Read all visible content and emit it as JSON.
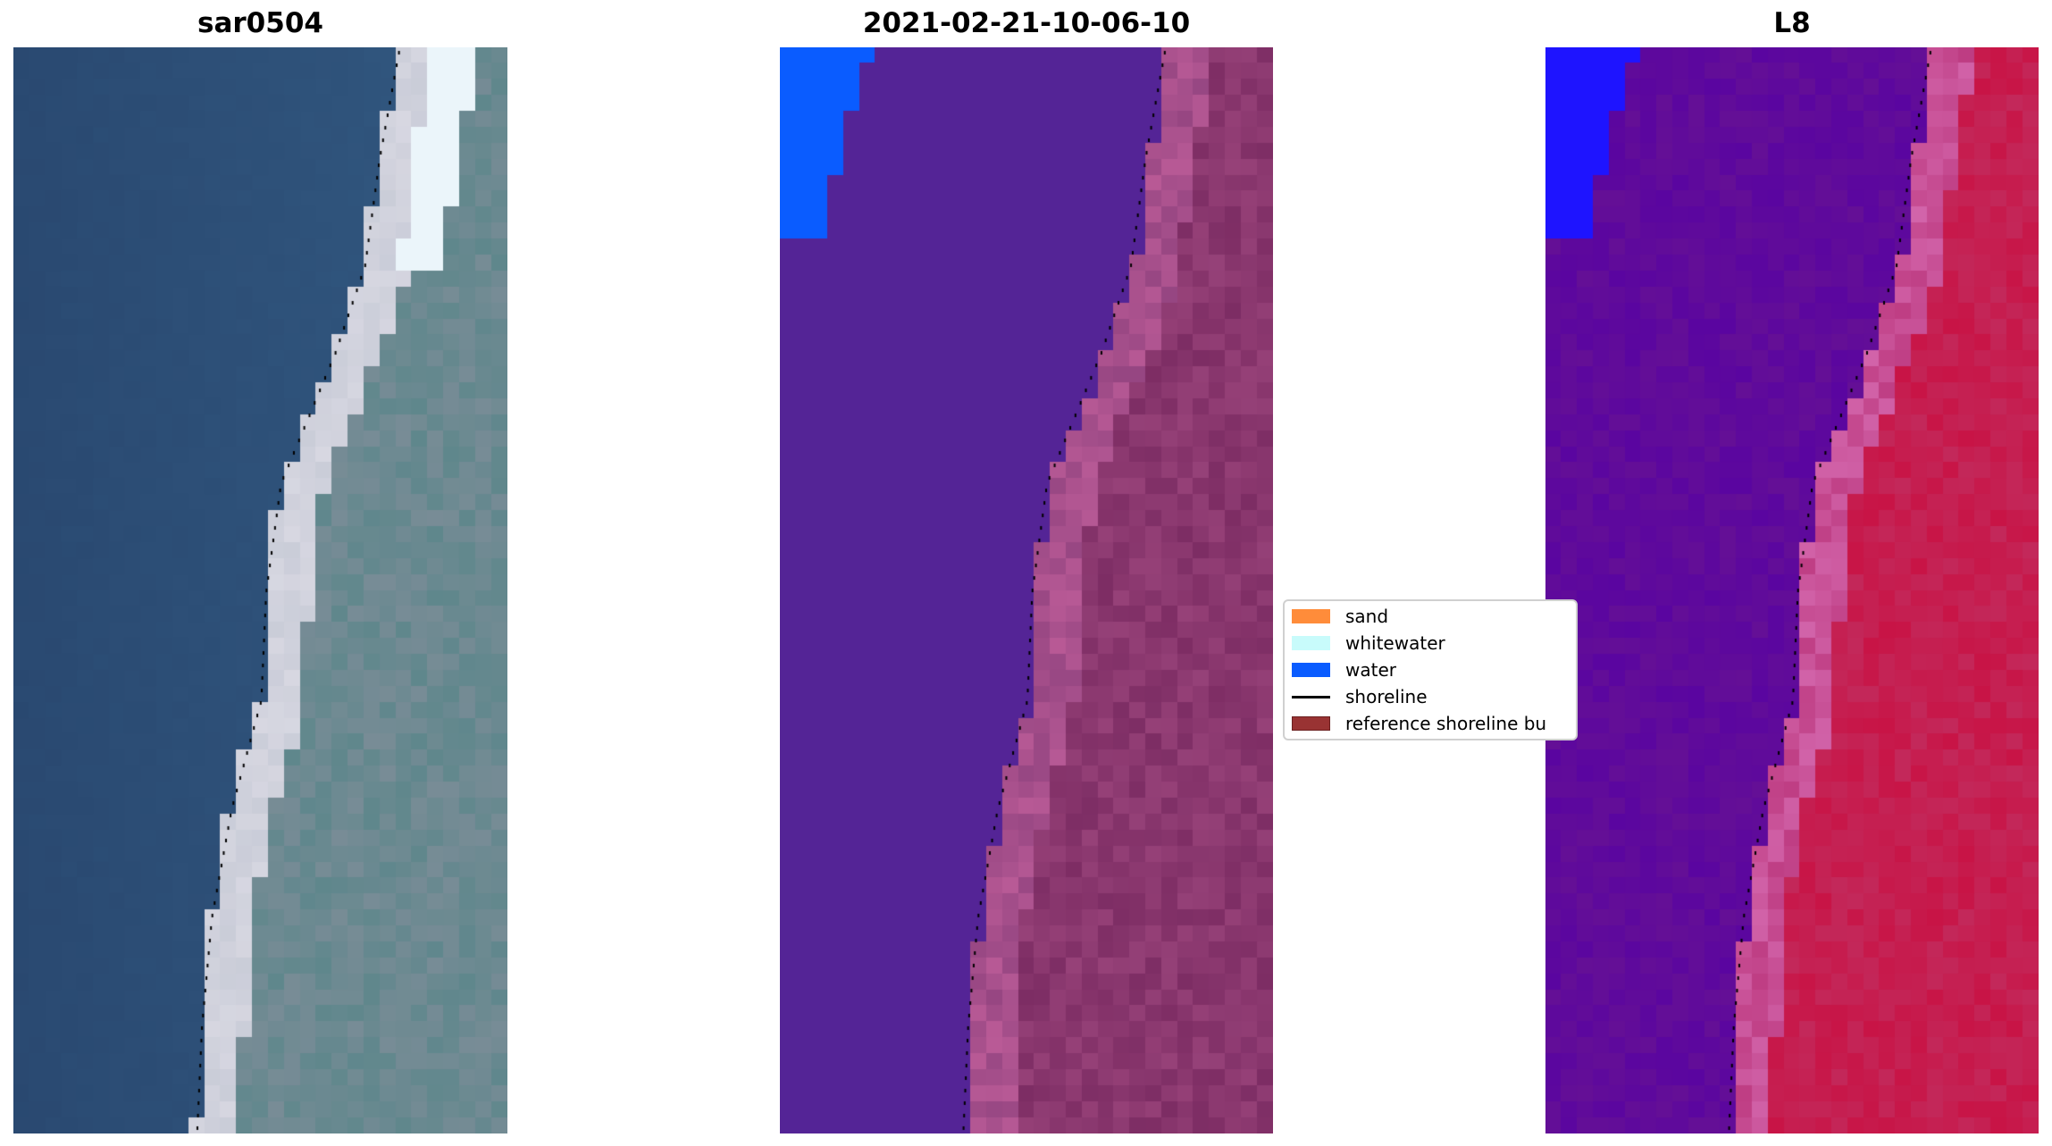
{
  "chart_data": {
    "type": "image-panels",
    "panels": [
      {
        "title": "sar0504",
        "kind": "rgb"
      },
      {
        "title": "2021-02-21-10-06-10",
        "kind": "classified"
      },
      {
        "title": "L8",
        "kind": "classified-l8"
      }
    ],
    "legend": {
      "placement": "center-right of middle panel",
      "entries": [
        {
          "label": "sand",
          "type": "patch",
          "color": "#ff8c3a"
        },
        {
          "label": "whitewater",
          "type": "patch",
          "color": "#c8fbfb"
        },
        {
          "label": "water",
          "type": "patch",
          "color": "#0a5cff"
        },
        {
          "label": "shoreline",
          "type": "line",
          "color": "#000000"
        },
        {
          "label": "reference shoreline bu",
          "type": "patch",
          "color": "#993333"
        }
      ]
    },
    "axes": "off"
  }
}
